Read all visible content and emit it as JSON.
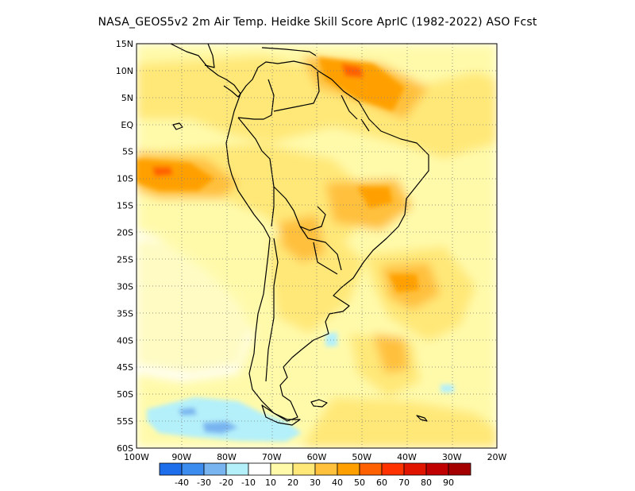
{
  "title": "NASA_GEOS5v2  2m Air Temp. Heidke Skill Score AprIC (1982-2022) ASO Fcst",
  "map": {
    "lon_range": [
      -100,
      -20
    ],
    "lat_range": [
      -60,
      15
    ],
    "x_ticks": [
      "100W",
      "90W",
      "80W",
      "70W",
      "60W",
      "50W",
      "40W",
      "30W",
      "20W"
    ],
    "y_ticks": [
      "15N",
      "10N",
      "5N",
      "EQ",
      "5S",
      "10S",
      "15S",
      "20S",
      "25S",
      "30S",
      "35S",
      "40S",
      "45S",
      "50S",
      "55S",
      "60S"
    ],
    "grid": "dotted"
  },
  "colorbar": {
    "labels": [
      "-40",
      "-30",
      "-20",
      "-10",
      "10",
      "20",
      "30",
      "40",
      "50",
      "60",
      "70",
      "80",
      "90"
    ],
    "colors": [
      "#1e6eeb",
      "#3c8cf0",
      "#78b4f0",
      "#b4f0fa",
      "#ffffff",
      "#fffaaa",
      "#ffe878",
      "#ffc03c",
      "#ffa000",
      "#ff6000",
      "#ff3200",
      "#e11400",
      "#c00000",
      "#a50000"
    ]
  }
}
